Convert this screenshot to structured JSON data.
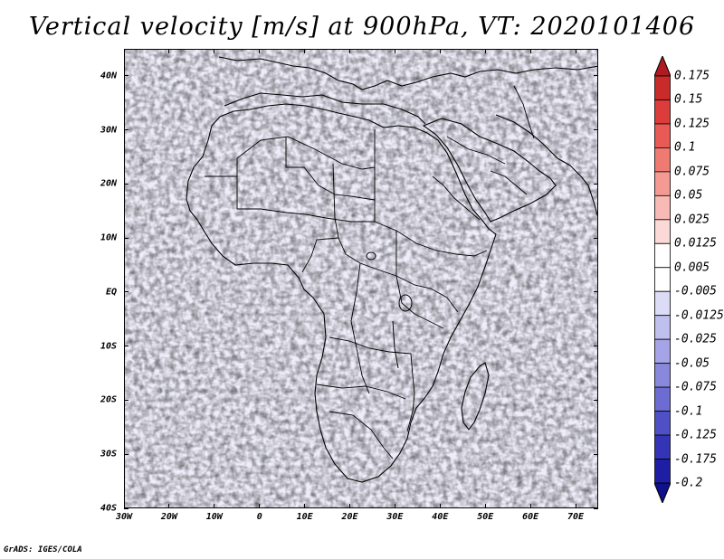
{
  "title": "Vertical velocity [m/s] at 900hPa, VT: 2020101406",
  "credit": "GrADS: IGES/COLA",
  "map": {
    "lon_range": [
      -30,
      75
    ],
    "lat_range": [
      -40,
      45
    ],
    "lat_ticks": [
      {
        "value": 40,
        "label": "40N"
      },
      {
        "value": 30,
        "label": "30N"
      },
      {
        "value": 20,
        "label": "20N"
      },
      {
        "value": 10,
        "label": "10N"
      },
      {
        "value": 0,
        "label": "EQ"
      },
      {
        "value": -10,
        "label": "10S"
      },
      {
        "value": -20,
        "label": "20S"
      },
      {
        "value": -30,
        "label": "30S"
      },
      {
        "value": -40,
        "label": "40S"
      }
    ],
    "lon_ticks": [
      {
        "value": -30,
        "label": "30W"
      },
      {
        "value": -20,
        "label": "20W"
      },
      {
        "value": -10,
        "label": "10W"
      },
      {
        "value": 0,
        "label": "0"
      },
      {
        "value": 10,
        "label": "10E"
      },
      {
        "value": 20,
        "label": "20E"
      },
      {
        "value": 30,
        "label": "30E"
      },
      {
        "value": 40,
        "label": "40E"
      },
      {
        "value": 50,
        "label": "50E"
      },
      {
        "value": 60,
        "label": "60E"
      },
      {
        "value": 70,
        "label": "70E"
      }
    ]
  },
  "colorbar": {
    "levels": [
      "0.175",
      "0.15",
      "0.125",
      "0.1",
      "0.075",
      "0.05",
      "0.025",
      "0.0125",
      "0.005",
      "-0.005",
      "-0.0125",
      "-0.025",
      "-0.05",
      "-0.075",
      "-0.1",
      "-0.125",
      "-0.175",
      "-0.2"
    ],
    "colors": [
      "#b01a22",
      "#c92a2a",
      "#dc3c3c",
      "#e85a55",
      "#ef7a72",
      "#f49a92",
      "#f8bab4",
      "#fbd9d6",
      "#ffffff",
      "#ffffff",
      "#dcdcf6",
      "#c0c0ef",
      "#a4a4e6",
      "#8888dc",
      "#6c6cd2",
      "#5050c6",
      "#3434b6",
      "#1e1ea4",
      "#10108c"
    ],
    "top_color": "#b01a22",
    "bottom_color": "#10108c"
  }
}
